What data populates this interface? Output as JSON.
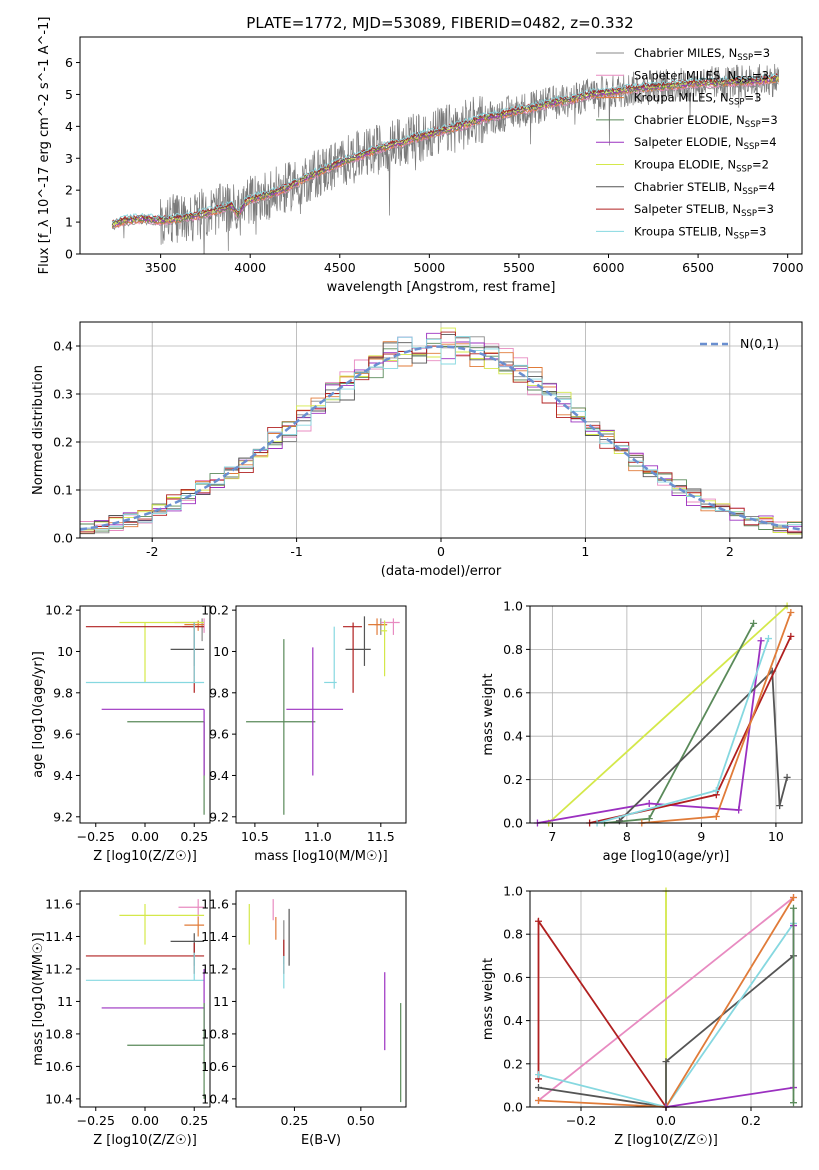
{
  "figure_title": "PLATE=1772, MJD=53089, FIBERID=0482, z=0.332",
  "colors": {
    "chabrier_miles": "#8a8a8a",
    "salpeter_miles": "#e88bc1",
    "kroupa_miles": "#e07b39",
    "chabrier_elodie": "#5a8a5a",
    "salpeter_elodie": "#9b30c0",
    "kroupa_elodie": "#d4e84a",
    "chabrier_stelib": "#555555",
    "salpeter_stelib": "#b02020",
    "kroupa_stelib": "#86d8e0",
    "gaussian": "#6a8fd0",
    "grid": "#b0b0b0",
    "observed": "#7a7a7a"
  },
  "series_names": [
    "Chabrier MILES, N_SSP=3",
    "Salpeter MILES, N_SSP=3",
    "Kroupa MILES, N_SSP=3",
    "Chabrier ELODIE, N_SSP=3",
    "Salpeter ELODIE, N_SSP=4",
    "Kroupa ELODIE, N_SSP=2",
    "Chabrier STELIB, N_SSP=4",
    "Salpeter STELIB, N_SSP=3",
    "Kroupa STELIB, N_SSP=3"
  ],
  "chart_data": [
    {
      "id": "spectrum",
      "type": "line",
      "xlabel": "wavelength [Angstrom, rest frame]",
      "ylabel": "Flux [f_λ 10^-17 erg cm^-2 s^-1 A^-1]",
      "xlim": [
        3050,
        7080
      ],
      "ylim": [
        0,
        6.8
      ],
      "xticks": [
        3500,
        4000,
        4500,
        5000,
        5500,
        6000,
        6500,
        7000
      ],
      "yticks": [
        0,
        1,
        2,
        3,
        4,
        5,
        6
      ],
      "continuum_knots": [
        [
          3230,
          0.9
        ],
        [
          3300,
          1.05
        ],
        [
          3400,
          1.1
        ],
        [
          3500,
          1.05
        ],
        [
          3600,
          1.1
        ],
        [
          3700,
          1.2
        ],
        [
          3800,
          1.35
        ],
        [
          3900,
          1.5
        ],
        [
          3930,
          1.2
        ],
        [
          3970,
          1.6
        ],
        [
          4000,
          1.7
        ],
        [
          4100,
          1.85
        ],
        [
          4200,
          2.05
        ],
        [
          4300,
          2.35
        ],
        [
          4400,
          2.6
        ],
        [
          4500,
          2.85
        ],
        [
          4600,
          3.05
        ],
        [
          4700,
          3.25
        ],
        [
          4800,
          3.45
        ],
        [
          4860,
          3.5
        ],
        [
          4900,
          3.6
        ],
        [
          5000,
          3.75
        ],
        [
          5100,
          3.9
        ],
        [
          5200,
          4.05
        ],
        [
          5300,
          4.25
        ],
        [
          5400,
          4.35
        ],
        [
          5500,
          4.5
        ],
        [
          5600,
          4.6
        ],
        [
          5700,
          4.75
        ],
        [
          5800,
          4.85
        ],
        [
          5900,
          5.0
        ],
        [
          6000,
          5.05
        ],
        [
          6100,
          5.15
        ],
        [
          6200,
          5.2
        ],
        [
          6300,
          5.25
        ],
        [
          6400,
          5.3
        ],
        [
          6500,
          5.35
        ],
        [
          6600,
          5.35
        ],
        [
          6700,
          5.4
        ],
        [
          6800,
          5.4
        ],
        [
          6950,
          5.5
        ]
      ],
      "grid": false,
      "legend_position": "top-right"
    },
    {
      "id": "residuals",
      "type": "histogram",
      "xlabel": "(data-model)/error",
      "ylabel": "Normed distribution",
      "xlim": [
        -2.5,
        2.5
      ],
      "ylim": [
        0,
        0.45
      ],
      "xticks": [
        -2,
        -1,
        0,
        1,
        2
      ],
      "yticks": [
        0,
        0.1,
        0.2,
        0.3,
        0.4
      ],
      "bin_width": 0.1,
      "bins_from": -2.5,
      "grid": true,
      "legend_label": "N(0,1)",
      "legend_position": "top-right"
    },
    {
      "id": "age_vs_z",
      "type": "errorbar",
      "xlabel": "Z [log10(Z/Z☉)]",
      "ylabel": "age [log10(age/yr)]",
      "xlim": [
        -0.33,
        0.33
      ],
      "ylim": [
        9.17,
        10.22
      ],
      "xticks": [
        -0.25,
        0.0,
        0.25
      ],
      "xticklabels": [
        "−0.25",
        "0.00",
        "0.25"
      ],
      "yticks": [
        9.2,
        9.4,
        9.6,
        9.8,
        10.0,
        10.2
      ],
      "points": [
        {
          "c": "chabrier_miles",
          "x": 0.29,
          "y": 10.12,
          "xl": 0.19,
          "xh": 0.3,
          "yl": 10.05,
          "yh": 10.16
        },
        {
          "c": "salpeter_miles",
          "x": 0.3,
          "y": 10.14,
          "xl": 0.15,
          "xh": 0.3,
          "yl": 10.09,
          "yh": 10.16
        },
        {
          "c": "kroupa_miles",
          "x": 0.27,
          "y": 10.13,
          "xl": 0.2,
          "xh": 0.3,
          "yl": 10.1,
          "yh": 10.15
        },
        {
          "c": "chabrier_elodie",
          "x": 0.3,
          "y": 9.66,
          "xl": -0.09,
          "xh": 0.3,
          "yl": 9.21,
          "yh": 9.66
        },
        {
          "c": "salpeter_elodie",
          "x": 0.3,
          "y": 9.72,
          "xl": -0.22,
          "xh": 0.3,
          "yl": 9.4,
          "yh": 9.72
        },
        {
          "c": "kroupa_elodie",
          "x": 0.0,
          "y": 10.14,
          "xl": -0.13,
          "xh": 0.3,
          "yl": 9.85,
          "yh": 10.14
        },
        {
          "c": "chabrier_stelib",
          "x": 0.25,
          "y": 10.01,
          "xl": 0.13,
          "xh": 0.3,
          "yl": 9.93,
          "yh": 10.14
        },
        {
          "c": "salpeter_stelib",
          "x": 0.25,
          "y": 10.12,
          "xl": -0.3,
          "xh": 0.3,
          "yl": 9.8,
          "yh": 10.14
        },
        {
          "c": "kroupa_stelib",
          "x": 0.25,
          "y": 9.85,
          "xl": -0.3,
          "xh": 0.3,
          "yl": 9.85,
          "yh": 10.14
        }
      ]
    },
    {
      "id": "age_vs_mass",
      "type": "errorbar",
      "xlabel": "mass [log10(M/M☉)]",
      "ylabel": "",
      "xlim": [
        10.35,
        11.7
      ],
      "ylim": [
        9.17,
        10.22
      ],
      "xticks": [
        10.5,
        11.0,
        11.5
      ],
      "xticklabels": [
        "10.5",
        "11.0",
        "11.5"
      ],
      "yticks": [
        9.2,
        9.4,
        9.6,
        9.8,
        10.0,
        10.2
      ],
      "points": [
        {
          "c": "chabrier_miles",
          "x": 11.5,
          "y": 10.13,
          "xl": 11.45,
          "xh": 11.55,
          "yl": 10.08,
          "yh": 10.16
        },
        {
          "c": "salpeter_miles",
          "x": 11.6,
          "y": 10.14,
          "xl": 11.5,
          "xh": 11.65,
          "yl": 10.08,
          "yh": 10.16
        },
        {
          "c": "kroupa_miles",
          "x": 11.47,
          "y": 10.13,
          "xl": 11.4,
          "xh": 11.55,
          "yl": 10.08,
          "yh": 10.16
        },
        {
          "c": "chabrier_elodie",
          "x": 10.73,
          "y": 9.66,
          "xl": 10.43,
          "xh": 10.98,
          "yl": 9.21,
          "yh": 10.06
        },
        {
          "c": "salpeter_elodie",
          "x": 10.96,
          "y": 9.72,
          "xl": 10.75,
          "xh": 11.2,
          "yl": 9.4,
          "yh": 10.02
        },
        {
          "c": "kroupa_elodie",
          "x": 11.53,
          "y": 10.1,
          "xl": 11.5,
          "xh": 11.55,
          "yl": 9.88,
          "yh": 10.15
        },
        {
          "c": "chabrier_stelib",
          "x": 11.37,
          "y": 10.01,
          "xl": 11.22,
          "xh": 11.42,
          "yl": 9.93,
          "yh": 10.17
        },
        {
          "c": "salpeter_stelib",
          "x": 11.28,
          "y": 10.12,
          "xl": 11.2,
          "xh": 11.35,
          "yl": 9.8,
          "yh": 10.14
        },
        {
          "c": "kroupa_stelib",
          "x": 11.13,
          "y": 9.85,
          "xl": 11.05,
          "xh": 11.15,
          "yl": 9.82,
          "yh": 10.12
        }
      ]
    },
    {
      "id": "weight_vs_age",
      "type": "line",
      "xlabel": "age [log10(age/yr)]",
      "ylabel": "mass weight",
      "xlim": [
        6.7,
        10.35
      ],
      "ylim": [
        0,
        1
      ],
      "xticks": [
        7,
        8,
        9,
        10
      ],
      "xticklabels": [
        "7",
        "8",
        "9",
        "10"
      ],
      "yticks": [
        0,
        0.2,
        0.4,
        0.6,
        0.8,
        1.0
      ],
      "grid": true,
      "series": [
        {
          "c": "kroupa_elodie",
          "x": [
            6.95,
            10.15
          ],
          "y": [
            0.0,
            1.0
          ]
        },
        {
          "c": "chabrier_elodie",
          "x": [
            7.7,
            8.3,
            9.7
          ],
          "y": [
            0.0,
            0.02,
            0.92
          ]
        },
        {
          "c": "salpeter_elodie",
          "x": [
            6.8,
            8.3,
            9.5,
            9.8
          ],
          "y": [
            0.0,
            0.09,
            0.06,
            0.84
          ]
        },
        {
          "c": "chabrier_stelib",
          "x": [
            7.9,
            9.95,
            10.05,
            10.15
          ],
          "y": [
            0.01,
            0.7,
            0.08,
            0.21
          ]
        },
        {
          "c": "salpeter_stelib",
          "x": [
            7.5,
            9.2,
            10.2
          ],
          "y": [
            0.0,
            0.13,
            0.86
          ]
        },
        {
          "c": "kroupa_stelib",
          "x": [
            7.6,
            9.2,
            9.9
          ],
          "y": [
            0.0,
            0.15,
            0.85
          ]
        },
        {
          "c": "kroupa_miles",
          "x": [
            8.2,
            9.2,
            10.2
          ],
          "y": [
            0.0,
            0.03,
            0.97
          ]
        }
      ]
    },
    {
      "id": "mass_vs_z",
      "type": "errorbar",
      "xlabel": "Z [log10(Z/Z☉)]",
      "ylabel": "mass [log10(M/M☉)]",
      "xlim": [
        -0.33,
        0.33
      ],
      "ylim": [
        10.35,
        11.68
      ],
      "xticks": [
        -0.25,
        0.0,
        0.25
      ],
      "xticklabels": [
        "−0.25",
        "0.00",
        "0.25"
      ],
      "yticks": [
        10.4,
        10.6,
        10.8,
        11.0,
        11.2,
        11.4,
        11.6
      ],
      "points": [
        {
          "c": "salpeter_miles",
          "x": 0.27,
          "y": 11.58,
          "xl": 0.17,
          "xh": 0.3,
          "yl": 11.52,
          "yh": 11.63
        },
        {
          "c": "kroupa_miles",
          "x": 0.27,
          "y": 11.47,
          "xl": 0.2,
          "xh": 0.3,
          "yl": 11.4,
          "yh": 11.52
        },
        {
          "c": "kroupa_elodie",
          "x": 0.0,
          "y": 11.53,
          "xl": -0.13,
          "xh": 0.3,
          "yl": 11.35,
          "yh": 11.6
        },
        {
          "c": "chabrier_stelib",
          "x": 0.25,
          "y": 11.37,
          "xl": 0.13,
          "xh": 0.3,
          "yl": 11.22,
          "yh": 11.42
        },
        {
          "c": "salpeter_stelib",
          "x": 0.25,
          "y": 11.28,
          "xl": -0.3,
          "xh": 0.3,
          "yl": 11.17,
          "yh": 11.36
        },
        {
          "c": "kroupa_stelib",
          "x": 0.25,
          "y": 11.13,
          "xl": -0.3,
          "xh": 0.3,
          "yl": 11.13,
          "yh": 11.3
        },
        {
          "c": "salpeter_elodie",
          "x": 0.3,
          "y": 10.96,
          "xl": -0.22,
          "xh": 0.3,
          "yl": 10.7,
          "yh": 11.2
        },
        {
          "c": "chabrier_elodie",
          "x": 0.3,
          "y": 10.73,
          "xl": -0.09,
          "xh": 0.3,
          "yl": 10.4,
          "yh": 10.99
        }
      ]
    },
    {
      "id": "mass_vs_ebv",
      "type": "errorbar",
      "xlabel": "E(B-V)",
      "ylabel": "",
      "xlim": [
        0.03,
        0.67
      ],
      "ylim": [
        10.35,
        11.68
      ],
      "xticks": [
        0.25,
        0.5
      ],
      "xticklabels": [
        "0.25",
        "0.50"
      ],
      "yticks": [
        10.4,
        10.6,
        10.8,
        11.0,
        11.2,
        11.4,
        11.6
      ],
      "points": [
        {
          "c": "kroupa_elodie",
          "x": 0.08,
          "y": 11.45,
          "yl": 11.35,
          "yh": 11.6
        },
        {
          "c": "salpeter_miles",
          "x": 0.17,
          "y": 11.55,
          "yl": 11.5,
          "yh": 11.63
        },
        {
          "c": "kroupa_miles",
          "x": 0.18,
          "y": 11.45,
          "yl": 11.38,
          "yh": 11.52
        },
        {
          "c": "chabrier_miles",
          "x": 0.21,
          "y": 11.4,
          "yl": 11.23,
          "yh": 11.5
        },
        {
          "c": "salpeter_stelib",
          "x": 0.21,
          "y": 11.28,
          "yl": 11.17,
          "yh": 11.38
        },
        {
          "c": "chabrier_stelib",
          "x": 0.23,
          "y": 11.37,
          "yl": 11.22,
          "yh": 11.57
        },
        {
          "c": "kroupa_stelib",
          "x": 0.21,
          "y": 11.15,
          "yl": 11.08,
          "yh": 11.28
        },
        {
          "c": "salpeter_elodie",
          "x": 0.59,
          "y": 10.96,
          "yl": 10.7,
          "yh": 11.18
        },
        {
          "c": "chabrier_elodie",
          "x": 0.65,
          "y": 10.73,
          "yl": 10.38,
          "yh": 10.99
        }
      ]
    },
    {
      "id": "weight_vs_z",
      "type": "line",
      "xlabel": "Z [log10(Z/Z☉)]",
      "ylabel": "mass weight",
      "xlim": [
        -0.32,
        0.32
      ],
      "ylim": [
        0,
        1
      ],
      "xticks": [
        -0.2,
        0.0,
        0.2
      ],
      "xticklabels": [
        "−0.2",
        "0.0",
        "0.2"
      ],
      "yticks": [
        0,
        0.2,
        0.4,
        0.6,
        0.8,
        1.0
      ],
      "grid": true,
      "series": [
        {
          "c": "kroupa_elodie",
          "x": [
            0.0,
            0.0
          ],
          "y": [
            0.0,
            1.0
          ]
        },
        {
          "c": "salpeter_miles",
          "x": [
            -0.3,
            0.3
          ],
          "y": [
            0.03,
            0.97
          ]
        },
        {
          "c": "salpeter_stelib",
          "x": [
            -0.3,
            -0.3,
            0.0
          ],
          "y": [
            0.13,
            0.86,
            0.0
          ]
        },
        {
          "c": "chabrier_stelib",
          "x": [
            -0.3,
            0.0,
            0.0,
            0.3
          ],
          "y": [
            0.09,
            0.0,
            0.21,
            0.7
          ]
        },
        {
          "c": "kroupa_stelib",
          "x": [
            -0.3,
            0.0,
            0.3
          ],
          "y": [
            0.15,
            0.0,
            0.85
          ]
        },
        {
          "c": "kroupa_miles",
          "x": [
            -0.3,
            0.0,
            0.3
          ],
          "y": [
            0.03,
            0.0,
            0.97
          ]
        },
        {
          "c": "salpeter_elodie",
          "x": [
            0.0,
            0.3,
            0.3
          ],
          "y": [
            0.0,
            0.09,
            0.84
          ]
        },
        {
          "c": "chabrier_elodie",
          "x": [
            0.3,
            0.3
          ],
          "y": [
            0.02,
            0.92
          ]
        }
      ]
    }
  ]
}
